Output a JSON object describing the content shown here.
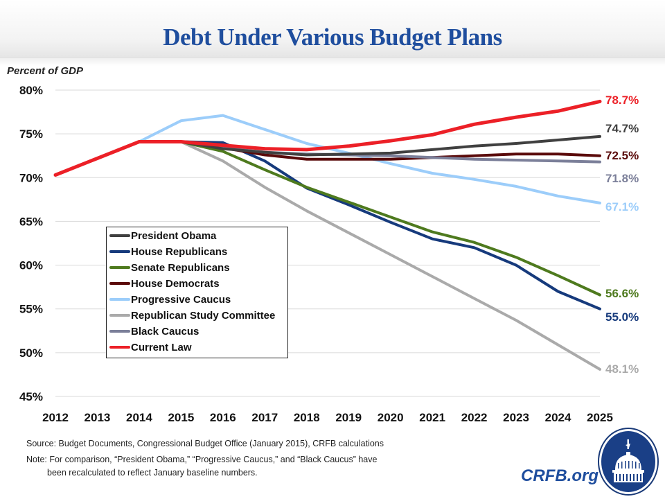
{
  "header": {
    "title": "Debt Under Various Budget Plans"
  },
  "footer": {
    "source": "Source: Budget Documents, Congressional Budget Office (January 2015), CRFB calculations",
    "note_line1": "Note: For comparison, “President Obama,” “Progressive Caucus,”  and “Black Caucus” have",
    "note_line2": "been recalculated to reflect January baseline numbers.",
    "brand": "CRFB.org",
    "logo_icon": "capitol-dome-icon"
  },
  "chart_data": {
    "type": "line",
    "title": "Debt Under Various Budget Plans",
    "xlabel": "",
    "ylabel": "Percent of GDP",
    "ylim": [
      45,
      80
    ],
    "yticks": [
      45,
      50,
      55,
      60,
      65,
      70,
      75,
      80
    ],
    "ytick_labels": [
      "45%",
      "50%",
      "55%",
      "60%",
      "65%",
      "70%",
      "75%",
      "80%"
    ],
    "grid": "horizontal",
    "legend_position": "center-left",
    "x": [
      "2012",
      "2013",
      "2014",
      "2015",
      "2016",
      "2017",
      "2018",
      "2019",
      "2020",
      "2021",
      "2022",
      "2023",
      "2024",
      "2025"
    ],
    "series": [
      {
        "name": "President Obama",
        "color": "#404040",
        "end_label": "74.7%",
        "values": [
          70.3,
          72.2,
          74.1,
          74.1,
          73.3,
          72.9,
          72.6,
          72.7,
          72.8,
          73.2,
          73.6,
          73.9,
          74.3,
          74.7
        ]
      },
      {
        "name": "House Republicans",
        "color": "#163a7c",
        "end_label": "55.0%",
        "values": [
          70.3,
          72.2,
          74.1,
          74.1,
          74.0,
          71.9,
          68.8,
          66.9,
          64.9,
          63.0,
          62.0,
          60.0,
          57.0,
          55.0
        ]
      },
      {
        "name": "Senate Republicans",
        "color": "#4e7a1e",
        "end_label": "56.6%",
        "values": [
          70.3,
          72.2,
          74.1,
          74.1,
          73.0,
          70.9,
          68.9,
          67.2,
          65.5,
          63.8,
          62.6,
          60.9,
          58.8,
          56.6
        ]
      },
      {
        "name": "House Democrats",
        "color": "#5a0a0a",
        "end_label": "72.5%",
        "values": [
          70.3,
          72.2,
          74.1,
          74.1,
          73.4,
          72.6,
          72.1,
          72.1,
          72.1,
          72.3,
          72.5,
          72.7,
          72.7,
          72.5
        ]
      },
      {
        "name": "Progressive Caucus",
        "color": "#9ccdfa",
        "end_label": "67.1%",
        "values": [
          70.3,
          72.2,
          74.1,
          76.5,
          77.1,
          75.5,
          73.9,
          72.8,
          71.6,
          70.5,
          69.8,
          69.0,
          67.9,
          67.1
        ]
      },
      {
        "name": "Republican Study Committee",
        "color": "#aaaaaa",
        "end_label": "48.1%",
        "values": [
          70.3,
          72.2,
          74.1,
          74.1,
          71.9,
          68.9,
          66.2,
          63.7,
          61.2,
          58.7,
          56.2,
          53.7,
          50.9,
          48.1
        ]
      },
      {
        "name": "Black Caucus",
        "color": "#7b7f99",
        "end_label": "71.8%",
        "values": [
          70.3,
          72.2,
          74.1,
          74.1,
          73.4,
          72.9,
          72.7,
          72.6,
          72.5,
          72.3,
          72.1,
          72.0,
          71.9,
          71.8
        ]
      },
      {
        "name": "Current Law",
        "color": "#ec2027",
        "end_label": "78.7%",
        "values": [
          70.3,
          72.2,
          74.1,
          74.1,
          73.7,
          73.3,
          73.2,
          73.6,
          74.2,
          74.9,
          76.1,
          76.9,
          77.6,
          78.7
        ]
      }
    ]
  }
}
